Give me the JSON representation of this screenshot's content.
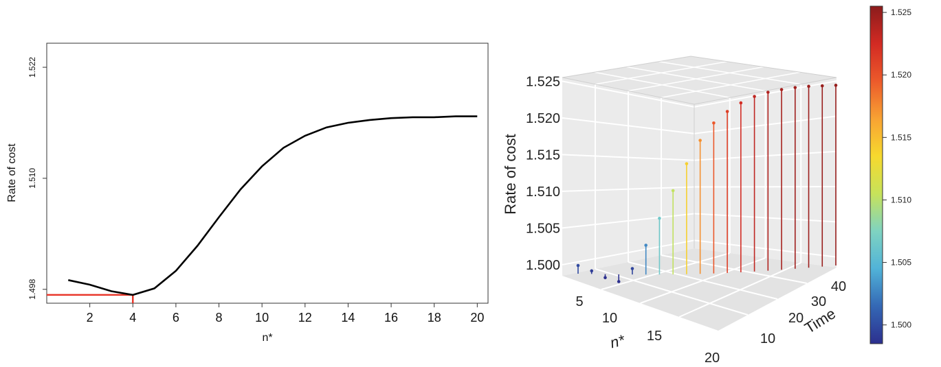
{
  "charts": {
    "chart_data": [
      {
        "type": "line",
        "xlabel": "n*",
        "ylabel": "Rate of cost",
        "xlim": [
          0.0,
          20.5
        ],
        "ylim": [
          1.4965,
          1.5246
        ],
        "x_ticks": [
          2,
          4,
          6,
          8,
          10,
          12,
          14,
          16,
          18,
          20
        ],
        "y_ticks": [
          1.498,
          1.51,
          1.522
        ],
        "x_tick_labels": [
          "2",
          "4",
          "6",
          "8",
          "10",
          "12",
          "14",
          "16",
          "18",
          "20"
        ],
        "y_tick_labels": [
          "1.498",
          "1.510",
          "1.522"
        ],
        "x": [
          1,
          2,
          3,
          4,
          5,
          6,
          7,
          8,
          9,
          10,
          11,
          12,
          13,
          14,
          15,
          16,
          17,
          18,
          19,
          20
        ],
        "values": [
          1.499,
          1.4985,
          1.4978,
          1.4974,
          1.4981,
          1.5,
          1.5027,
          1.5058,
          1.5088,
          1.5113,
          1.5133,
          1.5146,
          1.5155,
          1.516,
          1.5163,
          1.5165,
          1.5166,
          1.5166,
          1.5167,
          1.5167
        ],
        "highlight": {
          "x": 4,
          "y": 1.4974,
          "color": "#e8372a"
        },
        "line_color": "#000000",
        "grid": false
      },
      {
        "type": "scatter",
        "style": "3d-stem",
        "xlabel": "n*",
        "ylabel": "Time",
        "zlabel": "Rate of cost",
        "n_ticks": [
          "5",
          "10",
          "15",
          "20"
        ],
        "time_ticks": [
          "10",
          "20",
          "30",
          "40"
        ],
        "z_ticks": [
          "1.500",
          "1.505",
          "1.510",
          "1.515",
          "1.520",
          "1.525"
        ],
        "n": [
          1,
          2,
          3,
          4,
          5,
          6,
          7,
          8,
          9,
          10,
          11,
          12,
          13,
          14,
          15,
          16,
          17,
          18,
          19,
          20
        ],
        "values": [
          1.4999,
          1.4992,
          1.4983,
          1.4978,
          1.4996,
          1.5028,
          1.5065,
          1.5103,
          1.514,
          1.5172,
          1.5196,
          1.5212,
          1.5224,
          1.5233,
          1.5239,
          1.5243,
          1.5246,
          1.5248,
          1.5249,
          1.525
        ],
        "background": "#ebebeb",
        "grid": true
      }
    ],
    "colorbar": {
      "ticks": [
        "1.500",
        "1.505",
        "1.510",
        "1.515",
        "1.520",
        "1.525"
      ],
      "min": 1.4985,
      "max": 1.5255,
      "colors": [
        "#2c2f8e",
        "#3468b5",
        "#51b3d8",
        "#7fd3c1",
        "#c7e25a",
        "#f6d92e",
        "#f8a233",
        "#ec5a2b",
        "#d22a23",
        "#8b1c1c"
      ]
    }
  }
}
